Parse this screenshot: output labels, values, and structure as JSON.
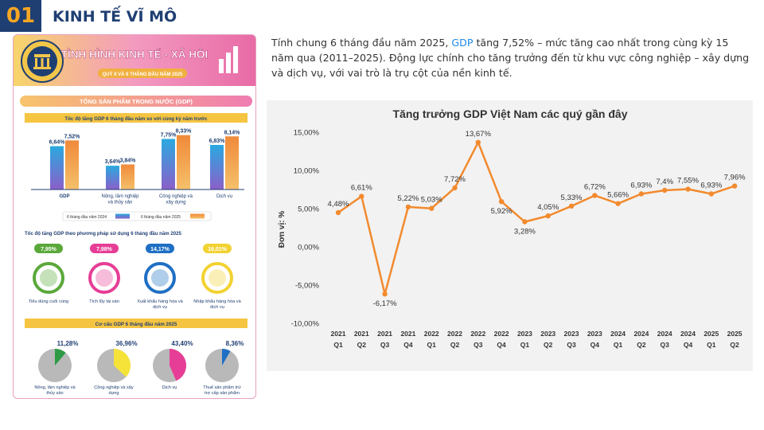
{
  "header": {
    "number": "01",
    "title": "KINH TẾ VĨ MÔ"
  },
  "intro": {
    "part1": "Tính chung 6 tháng đầu năm 2025, ",
    "highlight": "GDP",
    "part2": " tăng 7,52% – mức tăng cao nhất trong cùng kỳ 15 năm qua (2011–2025). Động lực chính cho tăng trưởng đến từ khu vực công nghiệp – xây dựng và dịch vụ, với vai trò là trụ cột của nền kinh tế."
  },
  "infographic": {
    "banner_title": "TÌNH HÌNH KINH TẾ - XÃ HỘI",
    "banner_subtitle": "QUÝ II VÀ 6 THÁNG ĐẦU NĂM 2025",
    "gdp_section_title": "TỔNG SẢN PHẨM TRONG NƯỚC (GDP)",
    "growth_chart": {
      "title": "Tốc độ tăng GDP 6 tháng đầu năm so với cùng kỳ năm trước",
      "groups": [
        {
          "label": "GDP",
          "v2024": 6.64,
          "v2025": 7.52,
          "t2024": "6,64",
          "t2025": "7,52"
        },
        {
          "label": "Nông, lâm nghiệp và thủy sản",
          "v2024": 3.64,
          "v2025": 3.84,
          "t2024": "3,64",
          "t2025": "3,84"
        },
        {
          "label": "Công nghiệp và xây dựng",
          "v2024": 7.75,
          "v2025": 8.33,
          "t2024": "7,75",
          "t2025": "8,33"
        },
        {
          "label": "Dịch vụ",
          "v2024": 6.83,
          "v2025": 8.14,
          "t2024": "6,83",
          "t2025": "8,14"
        }
      ],
      "legend_2024": "6 tháng đầu năm 2024",
      "legend_2025": "6 tháng đầu năm 2025"
    },
    "usage_section": {
      "title": "Tốc độ tăng GDP theo phương pháp sử dụng 6 tháng đầu năm 2025",
      "items": [
        {
          "value": "7,95%",
          "label": "Tiêu dùng cuối cùng",
          "color": "#5aa83a"
        },
        {
          "value": "7,98%",
          "label": "Tích lũy tài sản",
          "color": "#e63e96"
        },
        {
          "value": "14,17%",
          "label": "Xuất khẩu hàng hóa và dịch vụ",
          "color": "#1e6fc4"
        },
        {
          "value": "16,01%",
          "label": "Nhập khẩu hàng hóa và dịch vụ",
          "color": "#f2d232"
        }
      ]
    },
    "structure_section": {
      "title": "Cơ cấu GDP 6 tháng đầu năm 2025",
      "items": [
        {
          "value": "11,28%",
          "share": 11.28,
          "label": "Nông, lâm nghiệp và thủy sản",
          "color": "#2e9a45"
        },
        {
          "value": "36,96%",
          "share": 36.96,
          "label": "Công nghiệp và xây dựng",
          "color": "#f5e33a"
        },
        {
          "value": "43,40%",
          "share": 43.4,
          "label": "Dịch vụ",
          "color": "#e63e96"
        },
        {
          "value": "8,36%",
          "share": 8.36,
          "label": "Thuế sản phẩm trừ trợ cấp sản phẩm",
          "color": "#1e6fc4"
        }
      ]
    }
  },
  "colors": {
    "navy": "#1f3f73",
    "orange": "#f28a2e",
    "accent": "#f5a623"
  },
  "chart_data": {
    "type": "line",
    "title": "Tăng trưởng GDP Việt Nam các quý gần đây",
    "ylabel": "Đơn vị: %",
    "xlabel": "",
    "ylim": [
      -10,
      15
    ],
    "yticks": [
      -10,
      -5,
      0,
      5,
      10,
      15
    ],
    "ytick_labels": [
      "-10,00%",
      "-5,00%",
      "0,00%",
      "5,00%",
      "10,00%",
      "15,00%"
    ],
    "grid": false,
    "categories": [
      [
        "2021",
        "Q1"
      ],
      [
        "2021",
        "Q2"
      ],
      [
        "2021",
        "Q3"
      ],
      [
        "2021",
        "Q4"
      ],
      [
        "2022",
        "Q1"
      ],
      [
        "2022",
        "Q2"
      ],
      [
        "2022",
        "Q3"
      ],
      [
        "2022",
        "Q4"
      ],
      [
        "2023",
        "Q1"
      ],
      [
        "2023",
        "Q2"
      ],
      [
        "2023",
        "Q3"
      ],
      [
        "2023",
        "Q4"
      ],
      [
        "2024",
        "Q1"
      ],
      [
        "2024",
        "Q2"
      ],
      [
        "2024",
        "Q3"
      ],
      [
        "2024",
        "Q4"
      ],
      [
        "2025",
        "Q1"
      ],
      [
        "2025",
        "Q2"
      ]
    ],
    "series": [
      {
        "values": [
          4.48,
          6.61,
          -6.17,
          5.22,
          5.03,
          7.72,
          13.67,
          5.92,
          3.28,
          4.05,
          5.33,
          6.72,
          5.66,
          6.93,
          7.4,
          7.55,
          6.93,
          7.96
        ],
        "labels": [
          "4,48%",
          "6,61%",
          "-6,17%",
          "5,22%",
          "5,03%",
          "7,72%",
          "13,67%",
          "5,92%",
          "3,28%",
          "4,05%",
          "5,33%",
          "6,72%",
          "5,66%",
          "6,93%",
          "7,4%",
          "7,55%",
          "6,93%",
          "7,96%"
        ],
        "color": "#f28a2e"
      }
    ]
  }
}
